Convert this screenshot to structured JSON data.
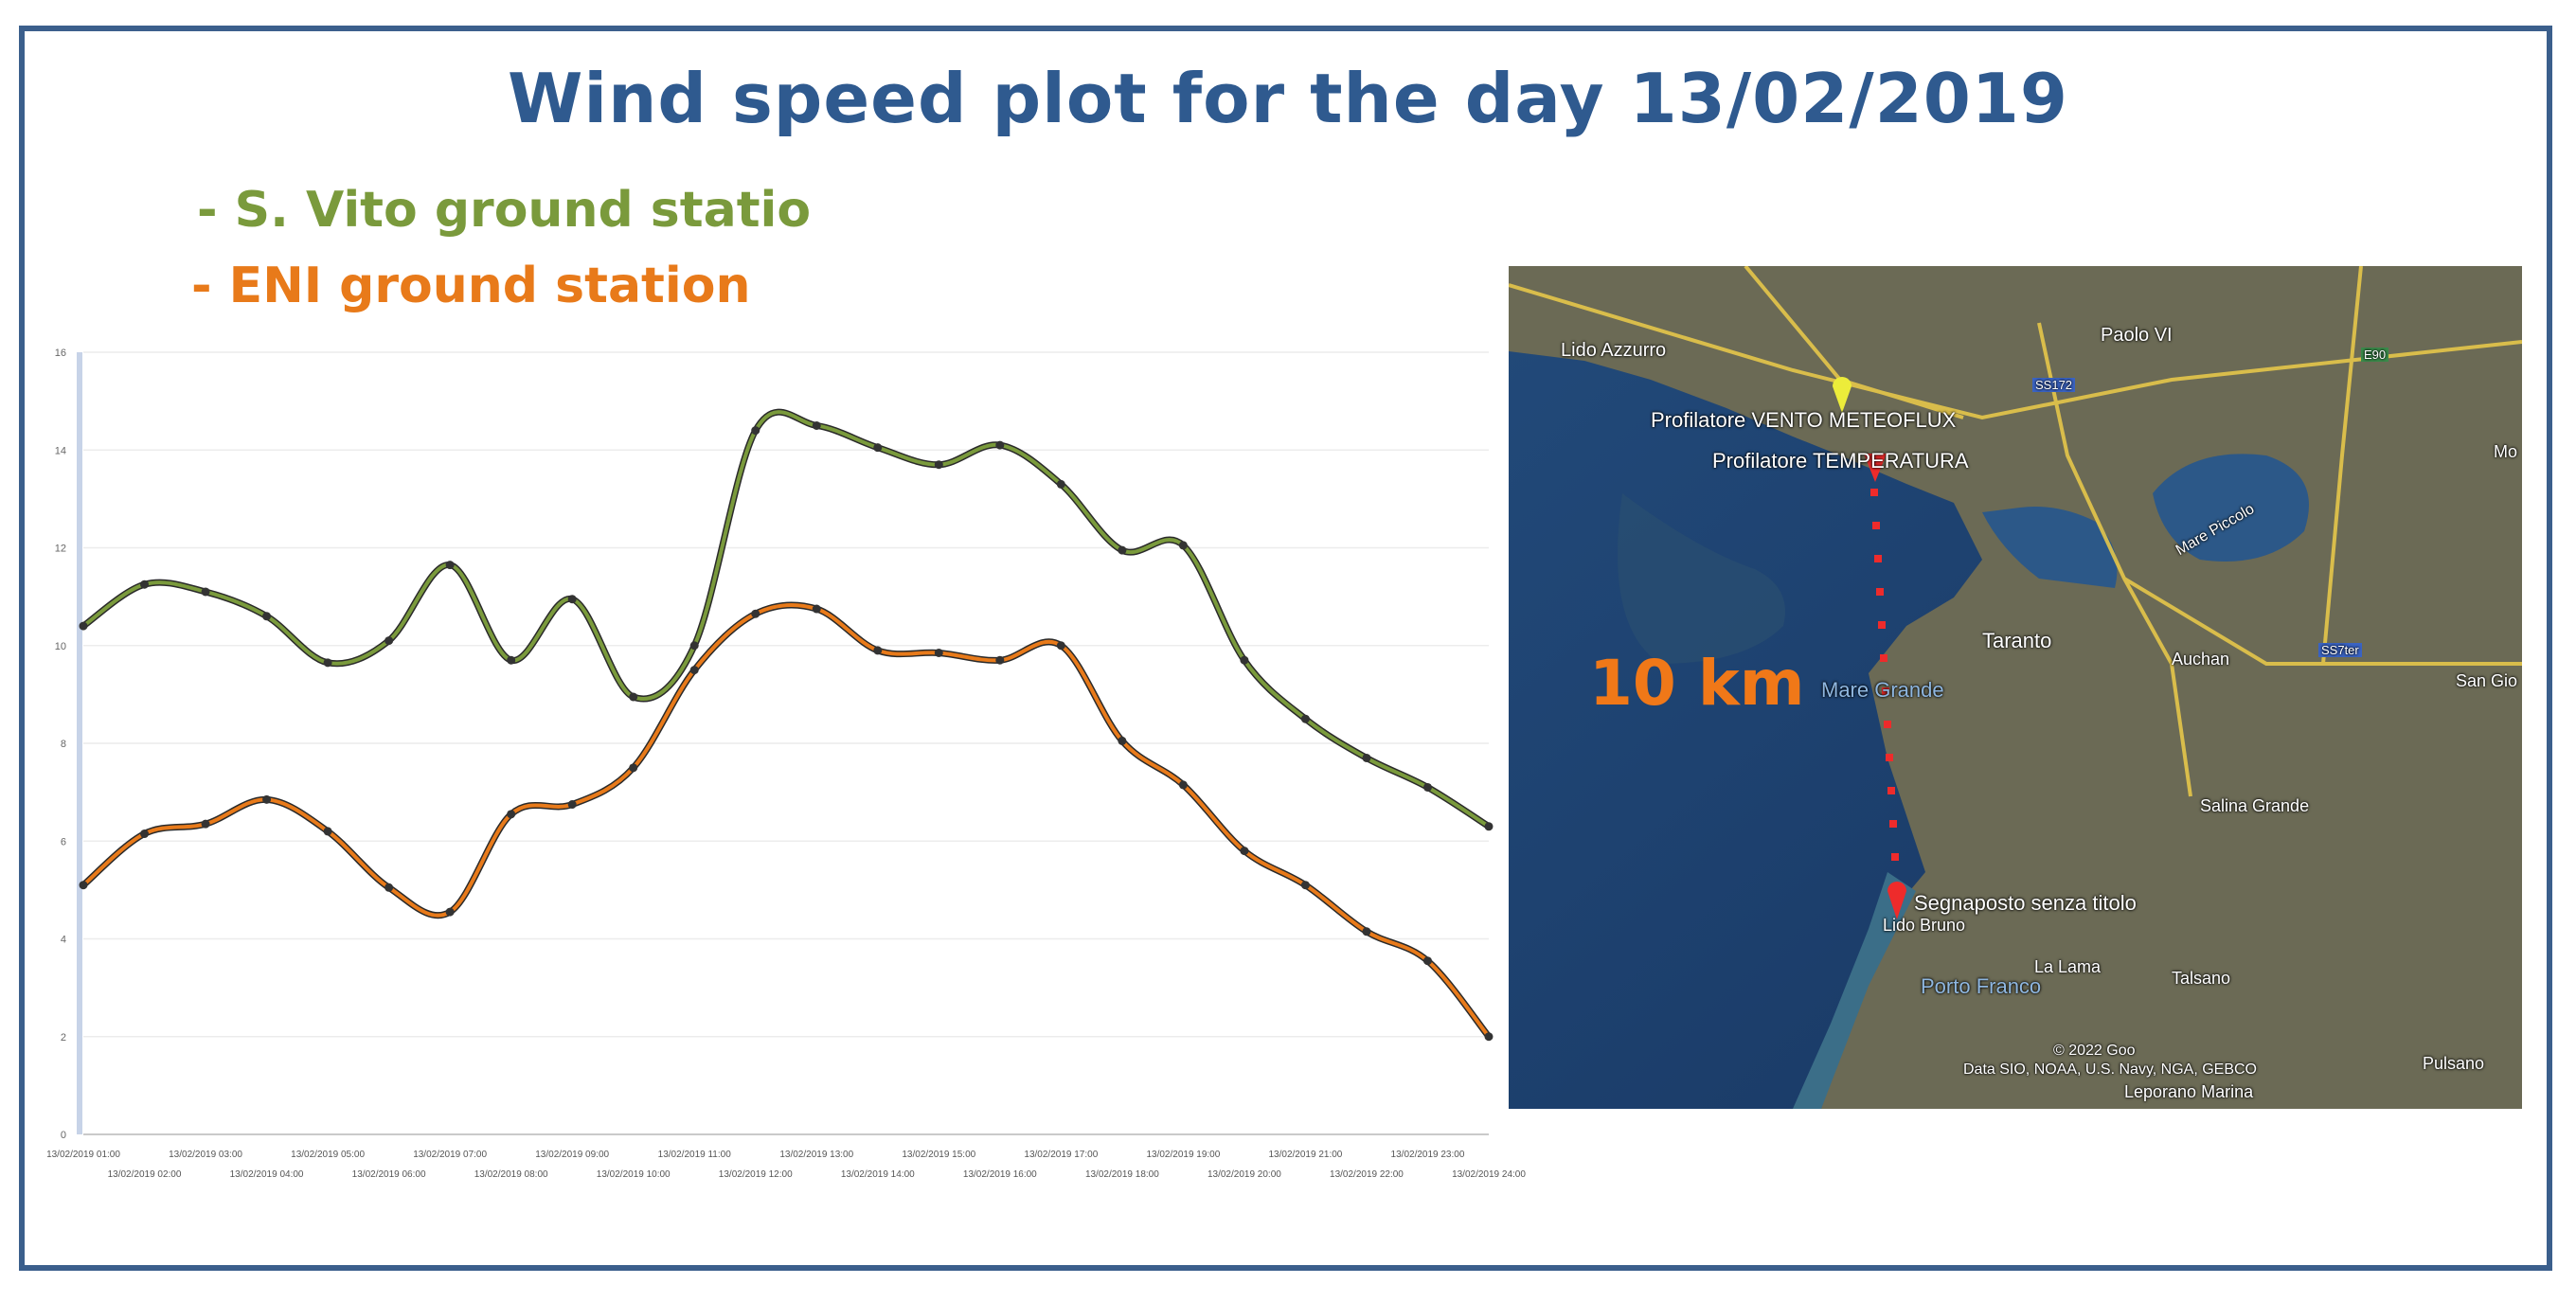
{
  "title": "Wind speed plot for the day 13/02/2019",
  "legend": {
    "series1": "- S. Vito ground statio",
    "series2": "- ENI ground station"
  },
  "colors": {
    "frame": "#3b5f8c",
    "title": "#2f5a8f",
    "series1": "#7a9a3c",
    "series2": "#e87a1a",
    "km_label": "#f07818"
  },
  "chart_data": {
    "type": "line",
    "categories": [
      "13/02/2019 01:00",
      "13/02/2019 02:00",
      "13/02/2019 03:00",
      "13/02/2019 04:00",
      "13/02/2019 05:00",
      "13/02/2019 06:00",
      "13/02/2019 07:00",
      "13/02/2019 08:00",
      "13/02/2019 09:00",
      "13/02/2019 10:00",
      "13/02/2019 11:00",
      "13/02/2019 12:00",
      "13/02/2019 13:00",
      "13/02/2019 14:00",
      "13/02/2019 15:00",
      "13/02/2019 16:00",
      "13/02/2019 17:00",
      "13/02/2019 18:00",
      "13/02/2019 19:00",
      "13/02/2019 20:00",
      "13/02/2019 21:00",
      "13/02/2019 22:00",
      "13/02/2019 23:00",
      "13/02/2019 24:00"
    ],
    "series": [
      {
        "name": "S. Vito ground statio",
        "color": "#7a9a3c",
        "values": [
          10.4,
          11.25,
          11.1,
          10.6,
          9.65,
          10.1,
          11.65,
          9.7,
          10.95,
          8.95,
          10.0,
          14.4,
          14.5,
          14.05,
          13.7,
          14.1,
          13.3,
          11.95,
          12.05,
          9.7,
          8.5,
          7.7,
          7.1,
          6.3
        ]
      },
      {
        "name": "ENI ground station",
        "color": "#e87a1a",
        "values": [
          5.1,
          6.15,
          6.35,
          6.85,
          6.2,
          5.05,
          4.55,
          6.55,
          6.75,
          7.5,
          9.5,
          10.65,
          10.75,
          9.9,
          9.85,
          9.7,
          10.0,
          8.05,
          7.15,
          5.8,
          5.1,
          4.15,
          3.55,
          2.0
        ]
      }
    ],
    "yticks": [
      0,
      2,
      4,
      6,
      8,
      10,
      12,
      14,
      16
    ],
    "ylim": [
      0,
      16
    ],
    "grid": true
  },
  "map": {
    "distance_label": "10 km",
    "labels": [
      {
        "text": "Lido Azzurro"
      },
      {
        "text": "Paolo VI"
      },
      {
        "text": "SS172"
      },
      {
        "text": "E90"
      },
      {
        "text": "Profilatore VENTO  METEOFLUX"
      },
      {
        "text": "Profilatore TEMPERATURA"
      },
      {
        "text": "Mare Piccolo"
      },
      {
        "text": "Taranto"
      },
      {
        "text": "Mare Grande"
      },
      {
        "text": "Auchan"
      },
      {
        "text": "SS7ter"
      },
      {
        "text": "San Gio"
      },
      {
        "text": "Mo"
      },
      {
        "text": "Salina Grande"
      },
      {
        "text": "Segnaposto senza titolo"
      },
      {
        "text": "Lido Bruno"
      },
      {
        "text": "La Lama"
      },
      {
        "text": "Talsano"
      },
      {
        "text": "Porto Franco"
      },
      {
        "text": "© 2022 Goo"
      },
      {
        "text": "Data SIO, NOAA, U.S. Navy, NGA, GEBCO"
      },
      {
        "text": "Leporano Marina"
      },
      {
        "text": "Pulsano"
      }
    ]
  }
}
